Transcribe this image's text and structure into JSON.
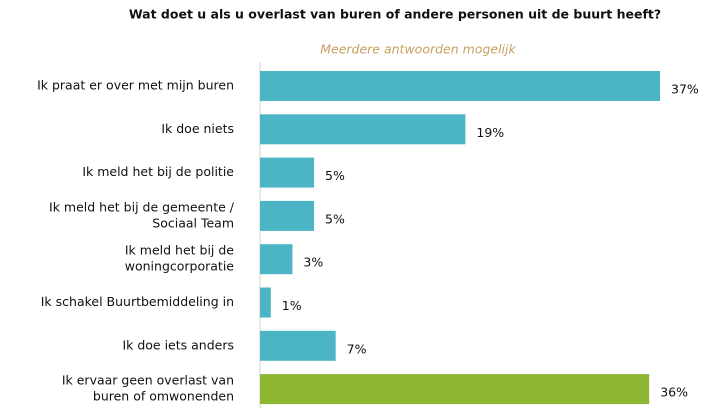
{
  "chart_data": {
    "type": "barh",
    "title": "Wat doet u als u overlast van buren of andere personen uit de buurt heeft?",
    "subtitle": "Meerdere antwoorden mogelijk",
    "categories": [
      [
        "Ik praat er over met mijn buren"
      ],
      [
        "Ik doe niets"
      ],
      [
        "Ik meld het bij de politie"
      ],
      [
        "Ik meld het bij de gemeente /",
        "Sociaal Team"
      ],
      [
        "Ik meld het bij de",
        "woningcorporatie"
      ],
      [
        "Ik schakel Buurtbemiddeling in"
      ],
      [
        "Ik doe iets anders"
      ],
      [
        "Ik ervaar geen overlast van",
        "buren of omwonenden"
      ]
    ],
    "values": [
      37,
      19,
      5,
      5,
      3,
      1,
      7,
      36
    ],
    "value_labels": [
      "37%",
      "19%",
      "5%",
      "5%",
      "3%",
      "1%",
      "7%",
      "36%"
    ],
    "colors": [
      "#4bb5c6",
      "#4bb5c6",
      "#4bb5c6",
      "#4bb5c6",
      "#4bb5c6",
      "#4bb5c6",
      "#4bb5c6",
      "#8db733"
    ]
  }
}
